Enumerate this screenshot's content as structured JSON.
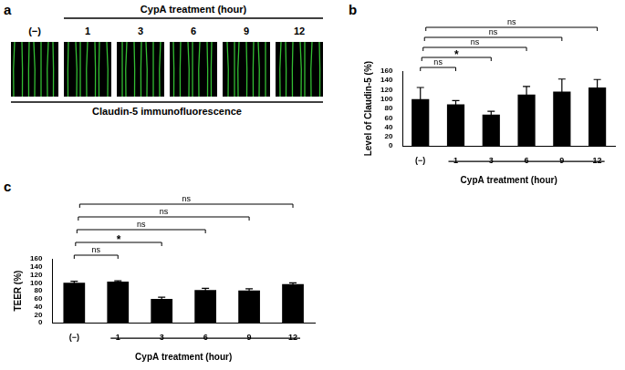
{
  "panel_a": {
    "label": "a",
    "header": "CypA treatment (hour)",
    "columns": [
      "(−)",
      "1",
      "3",
      "6",
      "9",
      "12"
    ],
    "caption": "Claudin-5 immunofluorescence"
  },
  "chart_data": [
    {
      "type": "bar",
      "title": "b",
      "categories": [
        "(−)",
        "1",
        "3",
        "6",
        "9",
        "12"
      ],
      "values": [
        100,
        89,
        67,
        110,
        116,
        125
      ],
      "errors": [
        25,
        8,
        7,
        17,
        27,
        17
      ],
      "color": "#000000",
      "y_label": "Level of Claudin-5 (%)",
      "x_label": "CypA treatment (hour)",
      "ylim": [
        0,
        160
      ],
      "yticks": [
        0,
        20,
        40,
        60,
        80,
        100,
        120,
        140,
        160
      ],
      "grid": false,
      "annotations": [
        {
          "from": "(−)",
          "to": "1",
          "label": "ns"
        },
        {
          "from": "(−)",
          "to": "3",
          "label": "*"
        },
        {
          "from": "(−)",
          "to": "6",
          "label": "ns"
        },
        {
          "from": "(−)",
          "to": "9",
          "label": "ns"
        },
        {
          "from": "(−)",
          "to": "12",
          "label": "ns"
        }
      ]
    },
    {
      "type": "bar",
      "title": "c",
      "categories": [
        "(−)",
        "1",
        "3",
        "6",
        "9",
        "12"
      ],
      "values": [
        100,
        103,
        60,
        82,
        81,
        97
      ],
      "errors": [
        4,
        2,
        4,
        4,
        4,
        3
      ],
      "color": "#000000",
      "y_label": "TEER (%)",
      "x_label": "CypA treatment (hour)",
      "ylim": [
        0,
        160
      ],
      "yticks": [
        0,
        20,
        40,
        60,
        80,
        100,
        120,
        140,
        160
      ],
      "grid": false,
      "annotations": [
        {
          "from": "(−)",
          "to": "1",
          "label": "ns"
        },
        {
          "from": "(−)",
          "to": "3",
          "label": "*"
        },
        {
          "from": "(−)",
          "to": "6",
          "label": "ns"
        },
        {
          "from": "(−)",
          "to": "9",
          "label": "ns"
        },
        {
          "from": "(−)",
          "to": "12",
          "label": "ns"
        }
      ]
    }
  ]
}
